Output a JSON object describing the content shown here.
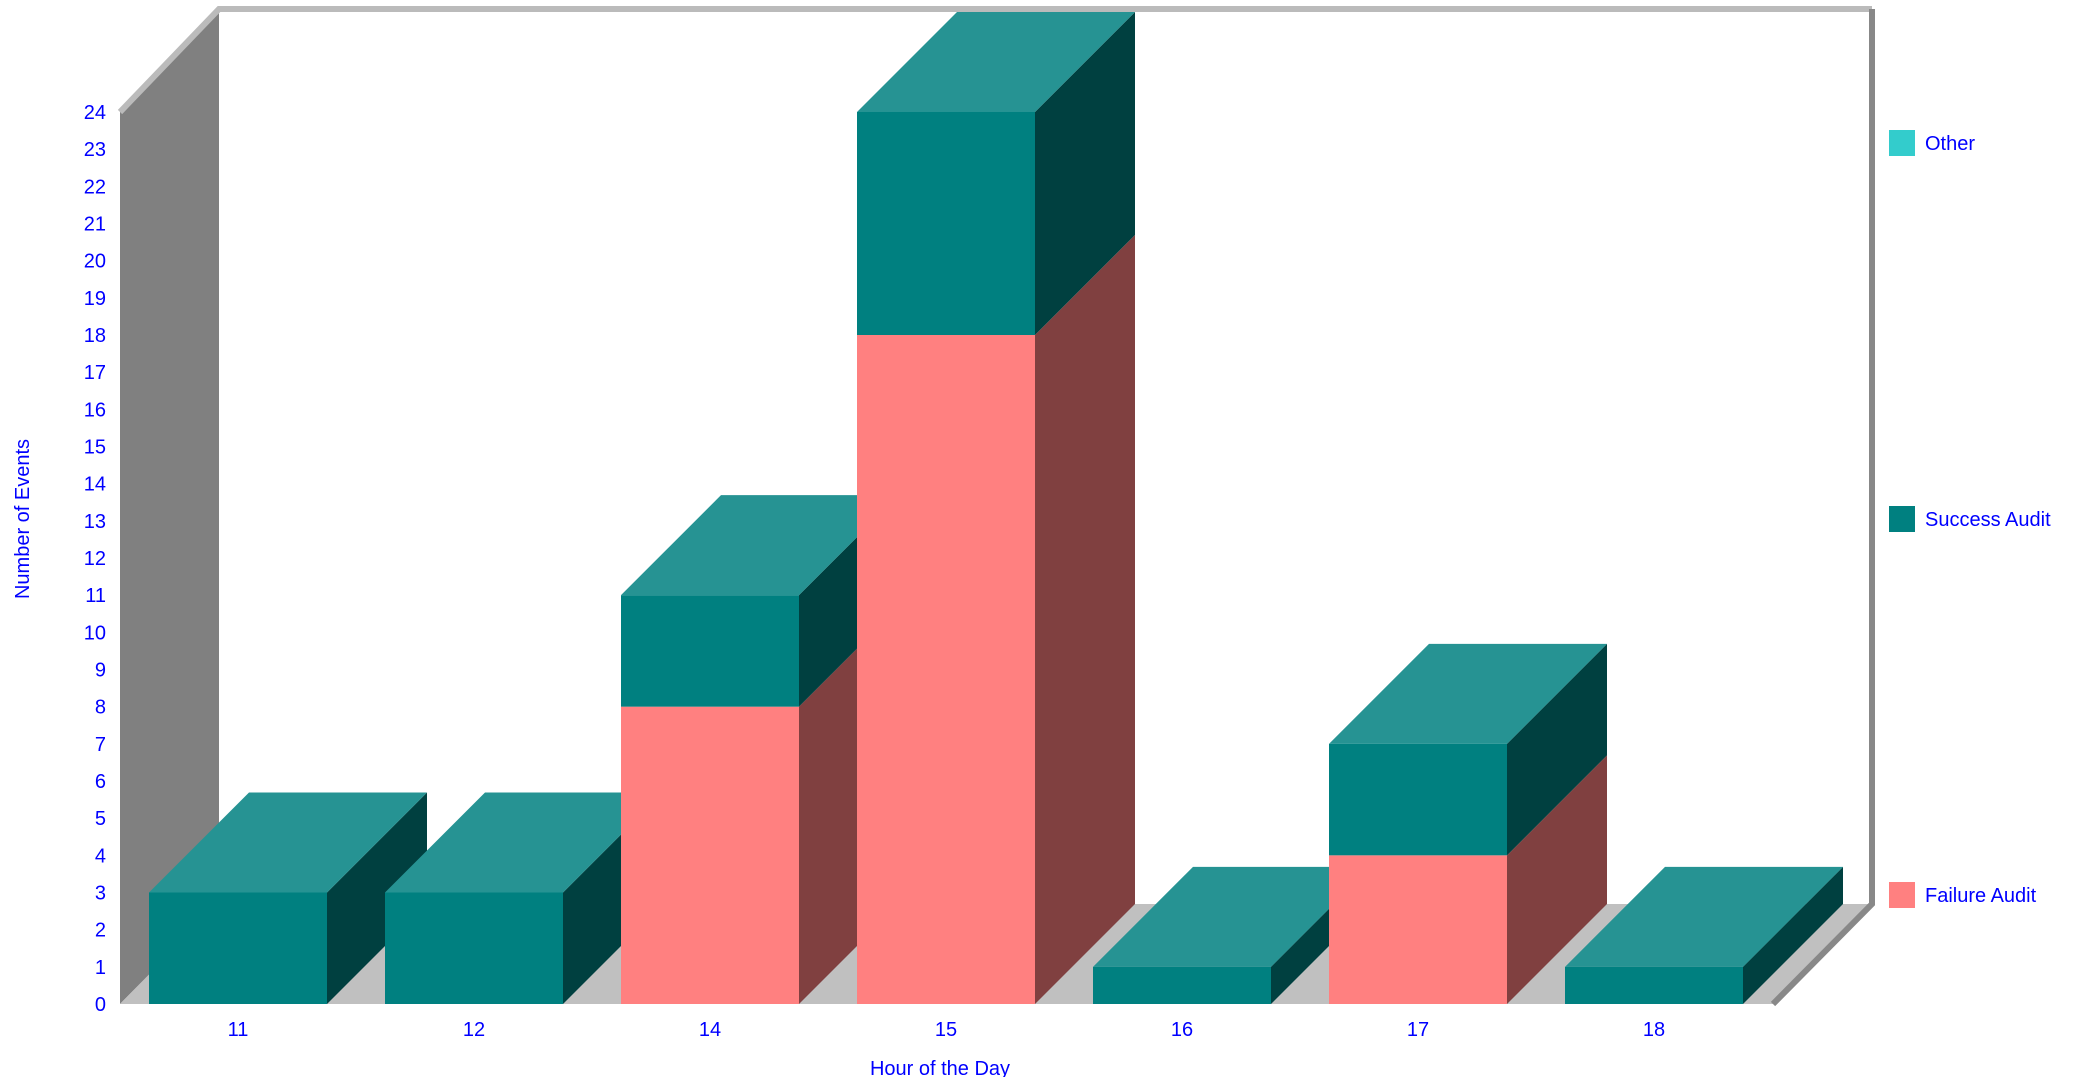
{
  "chart_data": {
    "type": "bar",
    "stacked": true,
    "three_d": true,
    "xlabel": "Hour of the Day",
    "ylabel": "Number of Events",
    "ylim": [
      0,
      24
    ],
    "yticks": [
      "0",
      "1",
      "2",
      "3",
      "4",
      "5",
      "6",
      "7",
      "8",
      "9",
      "10",
      "11",
      "12",
      "13",
      "14",
      "15",
      "16",
      "17",
      "18",
      "19",
      "20",
      "21",
      "22",
      "23",
      "24"
    ],
    "categories": [
      "11",
      "12",
      "14",
      "15",
      "16",
      "17",
      "18"
    ],
    "series": [
      {
        "name": "Failure Audit",
        "color": "#ff8080",
        "values": [
          0,
          0,
          8,
          18,
          0,
          4,
          0
        ]
      },
      {
        "name": "Success Audit",
        "color": "#008080",
        "values": [
          3,
          3,
          3,
          6,
          1,
          3,
          1
        ]
      },
      {
        "name": "Other",
        "color": "#33cccc",
        "values": [
          0,
          0,
          0,
          0,
          0,
          0,
          0
        ]
      }
    ],
    "legend": {
      "position": "right",
      "order": [
        "Other",
        "Success Audit",
        "Failure Audit"
      ]
    },
    "grid": false
  },
  "colors": {
    "text": "#0000ff",
    "wall_side": "#808080",
    "floor": "#c0c0c0",
    "frame": "#bbbbbb"
  }
}
